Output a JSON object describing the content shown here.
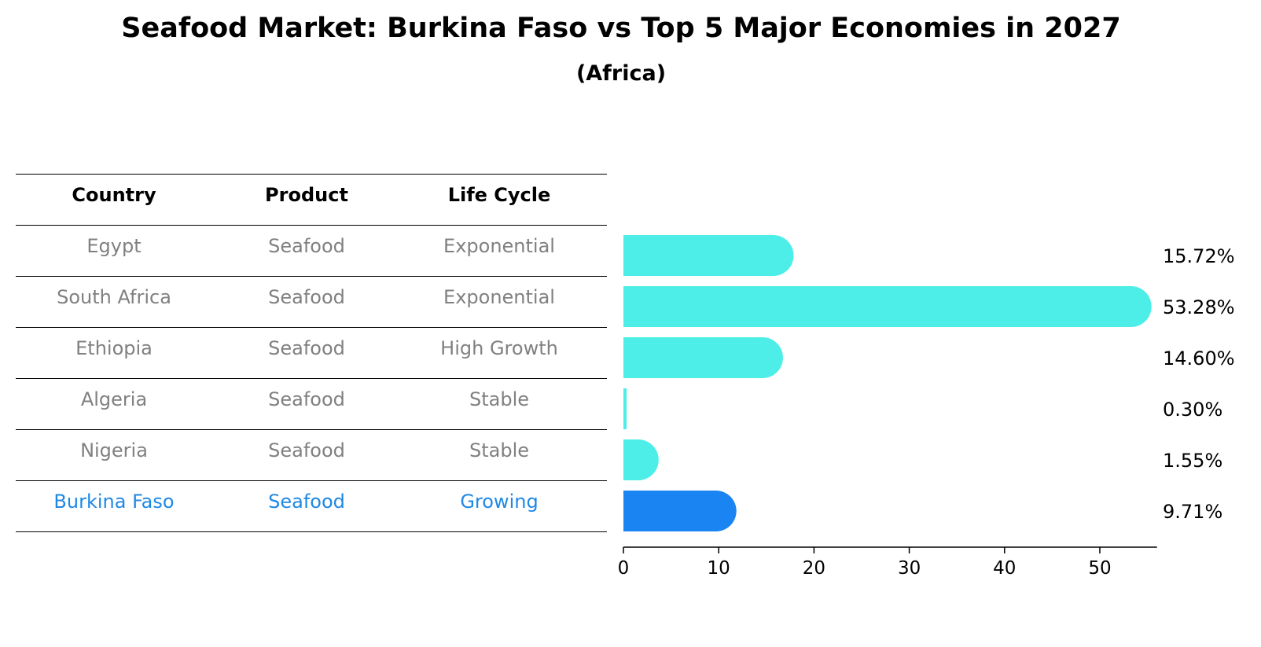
{
  "chart": {
    "title": "Seafood Market: Burkina Faso vs Top 5 Major Economies in 2027",
    "subtitle": "(Africa)"
  },
  "table": {
    "headers": [
      "Country",
      "Product",
      "Life Cycle"
    ],
    "rows": [
      [
        "Egypt",
        "Seafood",
        "Exponential"
      ],
      [
        "South Africa",
        "Seafood",
        "Exponential"
      ],
      [
        "Ethiopia",
        "Seafood",
        "High Growth"
      ],
      [
        "Algeria",
        "Seafood",
        "Stable"
      ],
      [
        "Nigeria",
        "Seafood",
        "Stable"
      ],
      [
        "Burkina Faso",
        "Seafood",
        "Growing"
      ]
    ]
  },
  "colors": {
    "bar": "#4deee8",
    "highlight": "#1a84f2",
    "highlight_text": "#1e88e5",
    "muted_text": "#808080"
  },
  "chart_data": {
    "type": "bar",
    "orientation": "horizontal",
    "categories": [
      "Egypt",
      "South Africa",
      "Ethiopia",
      "Algeria",
      "Nigeria",
      "Burkina Faso"
    ],
    "values": [
      15.72,
      53.28,
      14.6,
      0.3,
      1.55,
      9.71
    ],
    "value_labels": [
      "15.72%",
      "53.28%",
      "14.60%",
      "0.30%",
      "1.55%",
      "9.71%"
    ],
    "highlight": "Burkina Faso",
    "xlim": [
      0,
      56
    ],
    "xticks": [
      0,
      10,
      20,
      30,
      40,
      50
    ],
    "grid": false
  }
}
